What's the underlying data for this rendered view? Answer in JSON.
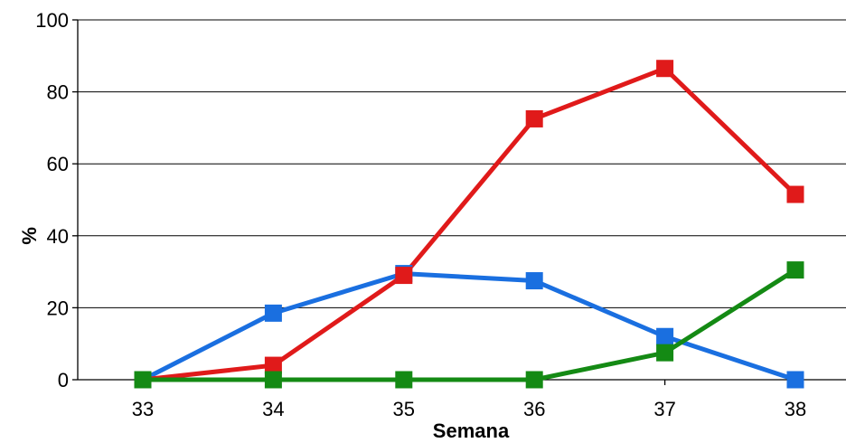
{
  "chart_data": {
    "type": "line",
    "xlabel": "Semana",
    "ylabel": "%",
    "categories": [
      "33",
      "34",
      "35",
      "36",
      "37",
      "38"
    ],
    "ylim": [
      0,
      100
    ],
    "yticks": [
      0,
      20,
      40,
      60,
      80,
      100
    ],
    "grid": "horizontal",
    "legend": "none",
    "series": [
      {
        "color": "#1a6fe0",
        "values": [
          0,
          18.5,
          29.5,
          27.5,
          12,
          0
        ]
      },
      {
        "color": "#e01a1a",
        "values": [
          0,
          4,
          29,
          72.5,
          86.5,
          51.5
        ]
      },
      {
        "color": "#148a14",
        "values": [
          0,
          0,
          0,
          0,
          7.5,
          30.5
        ]
      }
    ]
  }
}
